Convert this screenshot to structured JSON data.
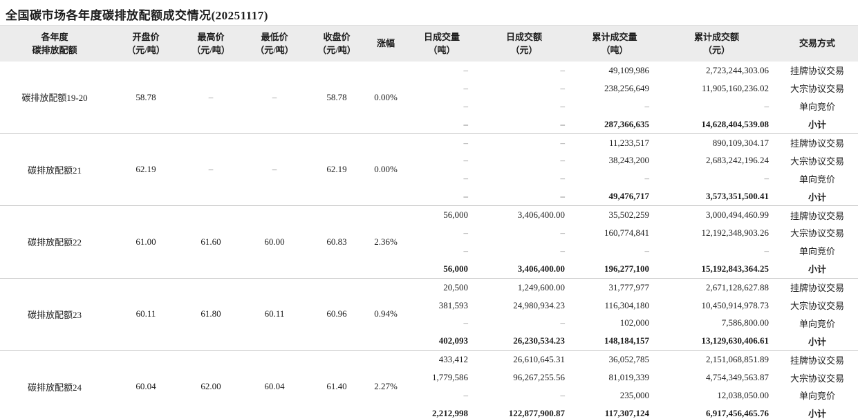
{
  "title": "全国碳市场各年度碳排放配额成交情况(20251117)",
  "colors": {
    "header_bg": "#ececec",
    "group_separator": "#c6c6c6",
    "bottom_rule": "#919191",
    "text": "#1c1c1c",
    "dash": "#8a8a8a"
  },
  "chart_data": {
    "type": "table",
    "title": "全国碳市场各年度碳排放配额成交情况(20251117)",
    "columns": [
      {
        "id": "name",
        "line1": "各年度",
        "line2": "碳排放配额"
      },
      {
        "id": "open",
        "line1": "开盘价",
        "line2": "（元/吨）"
      },
      {
        "id": "high",
        "line1": "最高价",
        "line2": "（元/吨）"
      },
      {
        "id": "low",
        "line1": "最低价",
        "line2": "（元/吨）"
      },
      {
        "id": "close",
        "line1": "收盘价",
        "line2": "（元/吨）"
      },
      {
        "id": "change",
        "line1": "涨幅",
        "line2": ""
      },
      {
        "id": "daily-volume",
        "line1": "日成交量",
        "line2": "（吨）"
      },
      {
        "id": "daily-amount",
        "line1": "日成交额",
        "line2": "（元）"
      },
      {
        "id": "cum-volume",
        "line1": "累计成交量",
        "line2": "（吨）"
      },
      {
        "id": "cum-amount",
        "line1": "累计成交额",
        "line2": "（元）"
      },
      {
        "id": "method",
        "line1": "交易方式",
        "line2": ""
      }
    ],
    "groups": [
      {
        "name": "碳排放配额19-20",
        "open": "58.78",
        "high": "–",
        "low": "–",
        "close": "58.78",
        "change": "0.00%",
        "rows": [
          {
            "daily_volume": "–",
            "daily_amount": "–",
            "cum_volume": "49,109,986",
            "cum_amount": "2,723,244,303.06",
            "method": "挂牌协议交易",
            "bold": false
          },
          {
            "daily_volume": "–",
            "daily_amount": "–",
            "cum_volume": "238,256,649",
            "cum_amount": "11,905,160,236.02",
            "method": "大宗协议交易",
            "bold": false
          },
          {
            "daily_volume": "–",
            "daily_amount": "–",
            "cum_volume": "–",
            "cum_amount": "–",
            "method": "单向竞价",
            "bold": false
          },
          {
            "daily_volume": "–",
            "daily_amount": "–",
            "cum_volume": "287,366,635",
            "cum_amount": "14,628,404,539.08",
            "method": "小计",
            "bold": true
          }
        ]
      },
      {
        "name": "碳排放配额21",
        "open": "62.19",
        "high": "–",
        "low": "–",
        "close": "62.19",
        "change": "0.00%",
        "rows": [
          {
            "daily_volume": "–",
            "daily_amount": "–",
            "cum_volume": "11,233,517",
            "cum_amount": "890,109,304.17",
            "method": "挂牌协议交易",
            "bold": false
          },
          {
            "daily_volume": "–",
            "daily_amount": "–",
            "cum_volume": "38,243,200",
            "cum_amount": "2,683,242,196.24",
            "method": "大宗协议交易",
            "bold": false
          },
          {
            "daily_volume": "–",
            "daily_amount": "–",
            "cum_volume": "–",
            "cum_amount": "–",
            "method": "单向竞价",
            "bold": false
          },
          {
            "daily_volume": "–",
            "daily_amount": "–",
            "cum_volume": "49,476,717",
            "cum_amount": "3,573,351,500.41",
            "method": "小计",
            "bold": true
          }
        ]
      },
      {
        "name": "碳排放配额22",
        "open": "61.00",
        "high": "61.60",
        "low": "60.00",
        "close": "60.83",
        "change": "2.36%",
        "rows": [
          {
            "daily_volume": "56,000",
            "daily_amount": "3,406,400.00",
            "cum_volume": "35,502,259",
            "cum_amount": "3,000,494,460.99",
            "method": "挂牌协议交易",
            "bold": false
          },
          {
            "daily_volume": "–",
            "daily_amount": "–",
            "cum_volume": "160,774,841",
            "cum_amount": "12,192,348,903.26",
            "method": "大宗协议交易",
            "bold": false
          },
          {
            "daily_volume": "–",
            "daily_amount": "–",
            "cum_volume": "–",
            "cum_amount": "–",
            "method": "单向竞价",
            "bold": false
          },
          {
            "daily_volume": "56,000",
            "daily_amount": "3,406,400.00",
            "cum_volume": "196,277,100",
            "cum_amount": "15,192,843,364.25",
            "method": "小计",
            "bold": true
          }
        ]
      },
      {
        "name": "碳排放配额23",
        "open": "60.11",
        "high": "61.80",
        "low": "60.11",
        "close": "60.96",
        "change": "0.94%",
        "rows": [
          {
            "daily_volume": "20,500",
            "daily_amount": "1,249,600.00",
            "cum_volume": "31,777,977",
            "cum_amount": "2,671,128,627.88",
            "method": "挂牌协议交易",
            "bold": false
          },
          {
            "daily_volume": "381,593",
            "daily_amount": "24,980,934.23",
            "cum_volume": "116,304,180",
            "cum_amount": "10,450,914,978.73",
            "method": "大宗协议交易",
            "bold": false
          },
          {
            "daily_volume": "–",
            "daily_amount": "–",
            "cum_volume": "102,000",
            "cum_amount": "7,586,800.00",
            "method": "单向竞价",
            "bold": false
          },
          {
            "daily_volume": "402,093",
            "daily_amount": "26,230,534.23",
            "cum_volume": "148,184,157",
            "cum_amount": "13,129,630,406.61",
            "method": "小计",
            "bold": true
          }
        ]
      },
      {
        "name": "碳排放配额24",
        "open": "60.04",
        "high": "62.00",
        "low": "60.04",
        "close": "61.40",
        "change": "2.27%",
        "rows": [
          {
            "daily_volume": "433,412",
            "daily_amount": "26,610,645.31",
            "cum_volume": "36,052,785",
            "cum_amount": "2,151,068,851.89",
            "method": "挂牌协议交易",
            "bold": false
          },
          {
            "daily_volume": "1,779,586",
            "daily_amount": "96,267,255.56",
            "cum_volume": "81,019,339",
            "cum_amount": "4,754,349,563.87",
            "method": "大宗协议交易",
            "bold": false
          },
          {
            "daily_volume": "–",
            "daily_amount": "–",
            "cum_volume": "235,000",
            "cum_amount": "12,038,050.00",
            "method": "单向竞价",
            "bold": false
          },
          {
            "daily_volume": "2,212,998",
            "daily_amount": "122,877,900.87",
            "cum_volume": "117,307,124",
            "cum_amount": "6,917,456,465.76",
            "method": "小计",
            "bold": true
          }
        ]
      }
    ]
  }
}
